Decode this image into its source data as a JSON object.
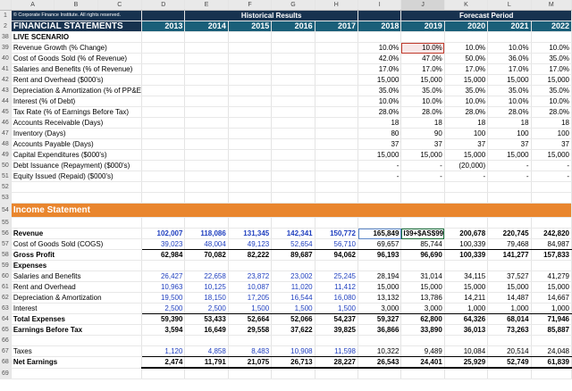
{
  "columns": [
    "A",
    "B",
    "C",
    "D",
    "E",
    "F",
    "G",
    "H",
    "I",
    "J",
    "K",
    "L",
    "M"
  ],
  "copyright": "© Corporate Finance Institute. All rights reserved.",
  "historical_label": "Historical Results",
  "forecast_label": "Forecast Period",
  "title": "FINANCIAL STATEMENTS",
  "years": [
    "2013",
    "2014",
    "2015",
    "2016",
    "2017",
    "2018",
    "2019",
    "2020",
    "2021",
    "2022"
  ],
  "live_scenario": "LIVE SCENARIO",
  "scenario_rows": [
    {
      "n": "39",
      "label": "Revenue Growth (% Change)",
      "v": [
        "10.0%",
        "10.0%",
        "10.0%",
        "10.0%",
        "10.0%"
      ]
    },
    {
      "n": "40",
      "label": "Cost of Goods Sold (% of Revenue)",
      "v": [
        "42.0%",
        "47.0%",
        "50.0%",
        "36.0%",
        "35.0%"
      ]
    },
    {
      "n": "41",
      "label": "Salaries and Benefits (% of Revenue)",
      "v": [
        "17.0%",
        "17.0%",
        "17.0%",
        "17.0%",
        "17.0%"
      ]
    },
    {
      "n": "42",
      "label": "Rent and Overhead ($000's)",
      "v": [
        "15,000",
        "15,000",
        "15,000",
        "15,000",
        "15,000"
      ]
    },
    {
      "n": "43",
      "label": "Depreciation & Amortization (% of PP&E)",
      "v": [
        "35.0%",
        "35.0%",
        "35.0%",
        "35.0%",
        "35.0%"
      ]
    },
    {
      "n": "44",
      "label": "Interest (% of Debt)",
      "v": [
        "10.0%",
        "10.0%",
        "10.0%",
        "10.0%",
        "10.0%"
      ]
    },
    {
      "n": "45",
      "label": "Tax Rate (% of Earnings Before Tax)",
      "v": [
        "28.0%",
        "28.0%",
        "28.0%",
        "28.0%",
        "28.0%"
      ]
    },
    {
      "n": "46",
      "label": "Accounts Receivable (Days)",
      "v": [
        "18",
        "18",
        "18",
        "18",
        "18"
      ]
    },
    {
      "n": "47",
      "label": "Inventory (Days)",
      "v": [
        "80",
        "90",
        "100",
        "100",
        "100"
      ]
    },
    {
      "n": "48",
      "label": "Accounts Payable (Days)",
      "v": [
        "37",
        "37",
        "37",
        "37",
        "37"
      ]
    },
    {
      "n": "49",
      "label": "Capital Expenditures ($000's)",
      "v": [
        "15,000",
        "15,000",
        "15,000",
        "15,000",
        "15,000"
      ]
    },
    {
      "n": "50",
      "label": "Debt Issuance (Repayment) ($000's)",
      "v": [
        "-",
        "-",
        "(20,000)",
        "-",
        "-"
      ]
    },
    {
      "n": "51",
      "label": "Equity Issued (Repaid) ($000's)",
      "v": [
        "-",
        "-",
        "-",
        "-",
        "-"
      ]
    }
  ],
  "income_statement": "Income Statement",
  "formula_text": "I39+$AS$99))",
  "income_rows": [
    {
      "n": "56",
      "label": "Revenue",
      "bold": true,
      "h": [
        "102,007",
        "118,086",
        "131,345",
        "142,341",
        "150,772"
      ],
      "f": [
        "165,849",
        "",
        "200,678",
        "220,745",
        "242,820"
      ]
    },
    {
      "n": "57",
      "label": "Cost of Goods Sold (COGS)",
      "h": [
        "39,023",
        "48,004",
        "49,123",
        "52,654",
        "56,710"
      ],
      "f": [
        "69,657",
        "85,744",
        "100,339",
        "79,468",
        "84,987"
      ]
    },
    {
      "n": "58",
      "label": "Gross Profit",
      "bold": true,
      "h": [
        "62,984",
        "70,082",
        "82,222",
        "89,687",
        "94,062"
      ],
      "f": [
        "96,193",
        "96,690",
        "100,339",
        "141,277",
        "157,833"
      ]
    },
    {
      "n": "59",
      "label": "Expenses",
      "bold": true,
      "h": [
        "",
        "",
        "",
        "",
        ""
      ],
      "f": [
        "",
        "",
        "",
        "",
        ""
      ]
    },
    {
      "n": "60",
      "label": "Salaries and Benefits",
      "h": [
        "26,427",
        "22,658",
        "23,872",
        "23,002",
        "25,245"
      ],
      "f": [
        "28,194",
        "31,014",
        "34,115",
        "37,527",
        "41,279"
      ]
    },
    {
      "n": "61",
      "label": "Rent and Overhead",
      "h": [
        "10,963",
        "10,125",
        "10,087",
        "11,020",
        "11,412"
      ],
      "f": [
        "15,000",
        "15,000",
        "15,000",
        "15,000",
        "15,000"
      ]
    },
    {
      "n": "62",
      "label": "Depreciation & Amortization",
      "h": [
        "19,500",
        "18,150",
        "17,205",
        "16,544",
        "16,080"
      ],
      "f": [
        "13,132",
        "13,786",
        "14,211",
        "14,487",
        "14,667"
      ]
    },
    {
      "n": "63",
      "label": "Interest",
      "h": [
        "2,500",
        "2,500",
        "1,500",
        "1,500",
        "1,500"
      ],
      "f": [
        "3,000",
        "3,000",
        "1,000",
        "1,000",
        "1,000"
      ]
    },
    {
      "n": "64",
      "label": "Total Expenses",
      "bold": true,
      "h": [
        "59,390",
        "53,433",
        "52,664",
        "52,066",
        "54,237"
      ],
      "f": [
        "59,327",
        "62,800",
        "64,326",
        "68,014",
        "71,946"
      ]
    },
    {
      "n": "65",
      "label": "Earnings Before Tax",
      "bold": true,
      "h": [
        "3,594",
        "16,649",
        "29,558",
        "37,622",
        "39,825"
      ],
      "f": [
        "36,866",
        "33,890",
        "36,013",
        "73,263",
        "85,887"
      ]
    },
    {
      "n": "66",
      "label": "",
      "h": [
        "",
        "",
        "",
        "",
        ""
      ],
      "f": [
        "",
        "",
        "",
        "",
        ""
      ]
    },
    {
      "n": "67",
      "label": "Taxes",
      "h": [
        "1,120",
        "4,858",
        "8,483",
        "10,908",
        "11,598"
      ],
      "f": [
        "10,322",
        "9,489",
        "10,084",
        "20,514",
        "24,048"
      ]
    },
    {
      "n": "68",
      "label": "Net Earnings",
      "bold": true,
      "h": [
        "2,474",
        "11,791",
        "21,075",
        "26,713",
        "28,227"
      ],
      "f": [
        "26,543",
        "24,401",
        "25,929",
        "52,749",
        "61,839"
      ]
    }
  ]
}
